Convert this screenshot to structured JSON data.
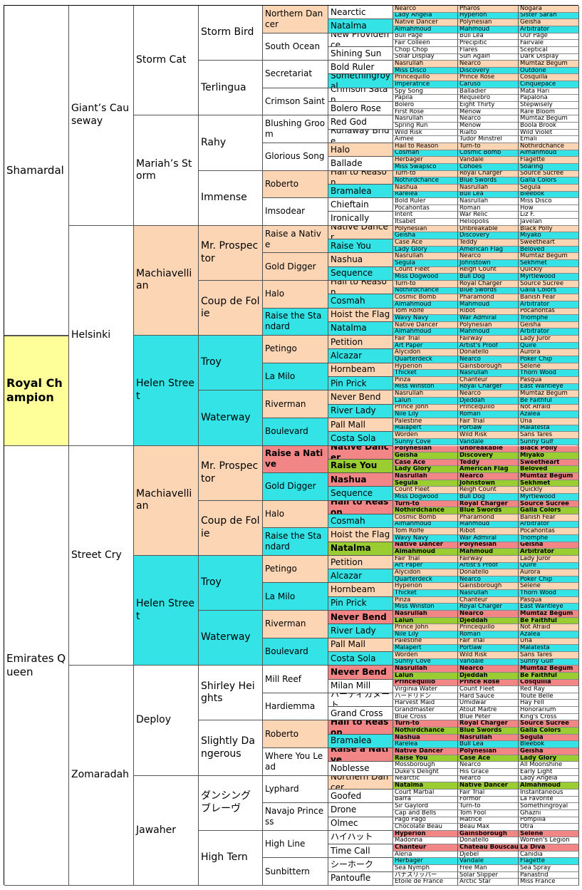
{
  "pedigree": {
    "subject": {
      "name": "Royal Champion",
      "fill": "#ffff99"
    },
    "sire": {
      "name": "Shamardal",
      "fill": "#ffffff"
    },
    "dam": {
      "name": "Emirates Queen",
      "fill": "#ffffff"
    },
    "gen2": {
      "names": [
        "Giant’s Causeway",
        "Helsinki",
        "Street Cry",
        "Zomaradah"
      ],
      "fills": [
        "#ffffff",
        "#ffffff",
        "#ffffff",
        "#ffffff"
      ]
    },
    "gen3": {
      "names": [
        "Storm Cat",
        "Mariah’s Storm",
        "Machiavellian",
        "Helen Street",
        "Machiavellian",
        "Helen Street",
        "Deploy",
        "Jawaher"
      ],
      "fills": [
        "#ffffff",
        "#ffffff",
        "#fcd5b4",
        "#33e3e6",
        "#fcd5b4",
        "#33e3e6",
        "#ffffff",
        "#ffffff"
      ]
    },
    "gen4": {
      "names": [
        "Storm Bird",
        "Terlingua",
        "Rahy",
        "Immense",
        "Mr. Prospector",
        "Coup de Folie",
        "Troy",
        "Waterway",
        "Mr. Prospector",
        "Coup de Folie",
        "Troy",
        "Waterway",
        "Shirley Heights",
        "Slightly Dangerous",
        "ダンシングブレーヴ",
        "High Tern"
      ],
      "fills": [
        "#ffffff",
        "#ffffff",
        "#ffffff",
        "#ffffff",
        "#fcd5b4",
        "#fcd5b4",
        "#33e3e6",
        "#33e3e6",
        "#fcd5b4",
        "#fcd5b4",
        "#33e3e6",
        "#33e3e6",
        "#ffffff",
        "#ffffff",
        "#ffffff",
        "#ffffff"
      ]
    },
    "gen5": {
      "names": [
        "Northern Dancer",
        "South Ocean",
        "Secretariat",
        "Crimson Saint",
        "Blushing Groom",
        "Glorious Song",
        "Roberto",
        "Imsodear",
        "Raise a Native",
        "Gold Digger",
        "Halo",
        "Raise the Standard",
        "Petingo",
        "La Milo",
        "Riverman",
        "Boulevard",
        "Raise a Native",
        "Gold Digger",
        "Halo",
        "Raise the Standard",
        "Petingo",
        "La Milo",
        "Riverman",
        "Boulevard",
        "Mill Reef",
        "Hardiemma",
        "Roberto",
        "Where You Lead",
        "Lyphard",
        "Navajo Princess",
        "High Line",
        "Sunbittern"
      ],
      "fills": [
        "#fcd5b4",
        "#ffffff",
        "#ffffff",
        "#ffffff",
        "#ffffff",
        "#ffffff",
        "#fcd5b4",
        "#ffffff",
        "#fcd5b4",
        "#fcd5b4",
        "#fcd5b4",
        "#33e3e6",
        "#fcd5b4",
        "#33e3e6",
        "#fcd5b4",
        "#33e3e6",
        "#f28585",
        "#33e3e6",
        "#fcd5b4",
        "#33e3e6",
        "#fcd5b4",
        "#33e3e6",
        "#fcd5b4",
        "#33e3e6",
        "#ffffff",
        "#ffffff",
        "#fcd5b4",
        "#ffffff",
        "#ffffff",
        "#ffffff",
        "#ffffff",
        "#ffffff"
      ]
    },
    "gen6": {
      "names": [
        "Nearctic",
        "Natalma",
        "New Providence",
        "Shining Sun",
        "Bold Ruler",
        "Somethingroyal",
        "Crimson Satan",
        "Bolero Rose",
        "Red God",
        "Runaway Bride",
        "Halo",
        "Ballade",
        "Hail to Reason",
        "Bramalea",
        "Chieftain",
        "Ironically",
        "Native Dancer",
        "Raise You",
        "Nashua",
        "Sequence",
        "Hail to Reason",
        "Cosmah",
        "Hoist the Flag",
        "Natalma",
        "Petition",
        "Alcazar",
        "Hornbeam",
        "Pin Prick",
        "Never Bend",
        "River Lady",
        "Pall Mall",
        "Costa Sola",
        "Native Dancer",
        "Raise You",
        "Nashua",
        "Sequence",
        "Hail to Reason",
        "Cosmah",
        "Hoist the Flag",
        "Natalma",
        "Petition",
        "Alcazar",
        "Hornbeam",
        "Pin Prick",
        "Never Bend",
        "River Lady",
        "Pall Mall",
        "Costa Sola",
        "Never Bend",
        "Milan Mill",
        "ハーディカヌート",
        "Grand Cross",
        "Hail to Reason",
        "Bramalea",
        "Raise a Native",
        "Noblesse",
        "Northern Dancer",
        "Goofed",
        "Drone",
        "Olmec",
        "ハイハット",
        "Time Call",
        "シーホーク",
        "Pantoufle"
      ],
      "fills": [
        "#ffffff",
        "#33e3e6",
        "#ffffff",
        "#ffffff",
        "#ffffff",
        "#33e3e6",
        "#ffffff",
        "#ffffff",
        "#ffffff",
        "#ffffff",
        "#fcd5b4",
        "#ffffff",
        "#fcd5b4",
        "#33e3e6",
        "#ffffff",
        "#ffffff",
        "#fcd5b4",
        "#33e3e6",
        "#fcd5b4",
        "#33e3e6",
        "#fcd5b4",
        "#33e3e6",
        "#fcd5b4",
        "#33e3e6",
        "#fcd5b4",
        "#33e3e6",
        "#fcd5b4",
        "#33e3e6",
        "#fcd5b4",
        "#33e3e6",
        "#fcd5b4",
        "#33e3e6",
        "#f28585",
        "#9acd32",
        "#f28585",
        "#33e3e6",
        "#f28585",
        "#33e3e6",
        "#fcd5b4",
        "#9acd32",
        "#fcd5b4",
        "#33e3e6",
        "#fcd5b4",
        "#33e3e6",
        "#f28585",
        "#33e3e6",
        "#fcd5b4",
        "#33e3e6",
        "#f28585",
        "#ffffff",
        "#ffffff",
        "#ffffff",
        "#f28585",
        "#33e3e6",
        "#f28585",
        "#ffffff",
        "#fcd5b4",
        "#ffffff",
        "#ffffff",
        "#ffffff",
        "#ffffff",
        "#ffffff",
        "#ffffff",
        "#ffffff"
      ]
    },
    "gen7": {
      "names": [
        "Nearco",
        "Lady Angela",
        "Native Dancer",
        "Almahmoud",
        "Bull Page",
        "Fair Colleen",
        "Chop Chop",
        "Solar Display",
        "Nasrullah",
        "Miss Disco",
        "Princequillo",
        "Imperatrice",
        "Spy Song",
        "Papila",
        "Bolero",
        "First Rose",
        "Nasrullah",
        "Spring Run",
        "Wild Risk",
        "Aimee",
        "Hail to Reason",
        "Cosmah",
        "Herbager",
        "Miss Swapsco",
        "Turn-to",
        "Nothirdchance",
        "Nashua",
        "Rarelea",
        "Bold Ruler",
        "Pocahontas",
        "Intent",
        "Itsabet",
        "Polynesian",
        "Geisha",
        "Case Ace",
        "Lady Glory",
        "Nasrullah",
        "Segula",
        "Count Fleet",
        "Miss Dogwood",
        "Turn-to",
        "Nothirdchance",
        "Cosmic Bomb",
        "Almahmoud",
        "Tom Rolfe",
        "Wavy Navy",
        "Native Dancer",
        "Almahmoud",
        "Fair Trial",
        "Art Paper",
        "Alycidon",
        "Quarterdeck",
        "Hyperion",
        "Thicket",
        "Pinza",
        "Miss Winston",
        "Nasrullah",
        "Lalun",
        "Prince John",
        "Nile Lily",
        "Palestine",
        "Malapert",
        "Worden",
        "Sunny Cove",
        "Polynesian",
        "Geisha",
        "Case Ace",
        "Lady Glory",
        "Nasrullah",
        "Segula",
        "Count Fleet",
        "Miss Dogwood",
        "Turn-to",
        "Nothirdchance",
        "Cosmic Bomb",
        "Almahmoud",
        "Tom Rolfe",
        "Wavy Navy",
        "Native Dancer",
        "Almahmoud",
        "Fair Trial",
        "Art Paper",
        "Alycidon",
        "Quarterdeck",
        "Hyperion",
        "Thicket",
        "Pinza",
        "Miss Winston",
        "Nasrullah",
        "Lalun",
        "Prince John",
        "Nile Lily",
        "Palestine",
        "Malapert",
        "Worden",
        "Sunny Cove",
        "Nasrullah",
        "Lalun",
        "Princequillo",
        "Virginia Water",
        "ハードリドン",
        "Harvest Maid",
        "Grandmaster",
        "Blue Cross",
        "Turn-to",
        "Nothirdchance",
        "Nashua",
        "Rarelea",
        "Native Dancer",
        "Raise You",
        "Mossborough",
        "Duke's Delight",
        "Nearctic",
        "Natalma",
        "Court Martial",
        "Barra",
        "Sir Gaylord",
        "Cap and Bells",
        "Pago Pago",
        "Chocolate Beau",
        "Hyperion",
        "Madonna",
        "Chanteur",
        "Aleria",
        "Herbager",
        "Sea Nymph",
        "パナスリッパー",
        "Etoile de France"
      ],
      "sires": [
        "Pharos",
        "Hyperion",
        "Polynesian",
        "Mahmoud",
        "Bull Lea",
        "Precipitic",
        "Flares",
        "Sun Again",
        "Nearco",
        "Discovery",
        "Prince Rose",
        "Caruso",
        "Balladier",
        "Requiebro",
        "Eight Thirty",
        "Menow",
        "Nearco",
        "Menow",
        "Rialto",
        "Tudor Minstrel",
        "Turn-to",
        "Cosmic Bomb",
        "Vandale",
        "Cohoes",
        "Royal Charger",
        "Blue Swords",
        "Nasrullah",
        "Bull Lea",
        "Nasrullah",
        "Roman",
        "War Relic",
        "Heliopolis",
        "Unbreakable",
        "Discovery",
        "Teddy",
        "American Flag",
        "Nearco",
        "Johnstown",
        "Reigh Count",
        "Bull Dog",
        "Royal Charger",
        "Blue Swords",
        "Pharamond",
        "Mahmoud",
        "Ribot",
        "War Admiral",
        "Polynesian",
        "Mahmoud",
        "Fairway",
        "Artist's Proof",
        "Donatello",
        "Nearco",
        "Gainsborough",
        "Nasrullah",
        "Chanteur",
        "Royal Charger",
        "Nearco",
        "Djeddah",
        "Princequillo",
        "Roman",
        "Fair Trial",
        "Portlaw",
        "Wild Risk",
        "Vandale",
        "Unbreakable",
        "Discovery",
        "Teddy",
        "American Flag",
        "Nearco",
        "Johnstown",
        "Reigh Count",
        "Bull Dog",
        "Royal Charger",
        "Blue Swords",
        "Pharamond",
        "Mahmoud",
        "Ribot",
        "War Admiral",
        "Polynesian",
        "Mahmoud",
        "Fairway",
        "Artist's Proof",
        "Donatello",
        "Nearco",
        "Gainsborough",
        "Nasrullah",
        "Chanteur",
        "Royal Charger",
        "Nearco",
        "Djeddah",
        "Princequillo",
        "Roman",
        "Fair Trial",
        "Portlaw",
        "Wild Risk",
        "Vandale",
        "Nearco",
        "Djeddah",
        "Prince Rose",
        "Count Fleet",
        "Hard Sauce",
        "Umidwar",
        "Atout Maitre",
        "Blue Peter",
        "Royal Charger",
        "Blue Swords",
        "Nasrullah",
        "Bull Lea",
        "Polynesian",
        "Case Ace",
        "Nearco",
        "His Grace",
        "Nearco",
        "Native Dancer",
        "Fair Trial",
        "Formor",
        "Turn-to",
        "Tom Fool",
        "Matrice",
        "Beau Max",
        "Gainsborough",
        "Donatello",
        "Chateau Bouscaut",
        "Djebel",
        "Vandale",
        "Free Man",
        "Solar Slipper",
        "Arctic Star"
      ],
      "dams": [
        "Nogara",
        "Sister Sarah",
        "Geisha",
        "Arbitrator",
        "Our Page",
        "Fairvale",
        "Sceptical",
        "Dark Display",
        "Mumtaz Begum",
        "Outdone",
        "Cosquilla",
        "Cinquepace",
        "Mata Hari",
        "Papalona",
        "Stepwisely",
        "Rare Bloom",
        "Mumtaz Begum",
        "Boola Brook",
        "Wild Violet",
        "Emali",
        "Nothirdchance",
        "Almahmoud",
        "Flagette",
        "Soaring",
        "Source Sucree",
        "Galla Colors",
        "Segula",
        "Bleebok",
        "Miss Disco",
        "How",
        "Liz F.",
        "Javelan",
        "Black Polly",
        "Miyako",
        "Sweetheart",
        "Beloved",
        "Mumtaz Begum",
        "Sekhmet",
        "Quickly",
        "Myrtlewood",
        "Source Sucree",
        "Galla Colors",
        "Banish Fear",
        "Arbitrator",
        "Pocahontas",
        "Triomphe",
        "Geisha",
        "Arbitrator",
        "Lady Juror",
        "Quire",
        "Aurora",
        "Poker Chip",
        "Selene",
        "Thorn Wood",
        "Pasqua",
        "East Wantleye",
        "Mumtaz Begum",
        "Be Faithful",
        "Not Afraid",
        "Azalea",
        "Una",
        "Malatesta",
        "Sans Tares",
        "Sunny Gulf",
        "Black Polly",
        "Miyako",
        "Sweetheart",
        "Beloved",
        "Mumtaz Begum",
        "Sekhmet",
        "Quickly",
        "Myrtlewood",
        "Source Sucree",
        "Galla Colors",
        "Banish Fear",
        "Arbitrator",
        "Pocahontas",
        "Triomphe",
        "Geisha",
        "Arbitrator",
        "Lady Juror",
        "Quire",
        "Aurora",
        "Poker Chip",
        "Selene",
        "Thorn Wood",
        "Pasqua",
        "East Wantleye",
        "Mumtaz Begum",
        "Be Faithful",
        "Not Afraid",
        "Azalea",
        "Una",
        "Malatesta",
        "Sans Tares",
        "Sunny Gulf",
        "Mumtaz Begum",
        "Be Faithful",
        "Cosquilla",
        "Red Ray",
        "Toute Belle",
        "Hay Fell",
        "Honorarium",
        "King's Cross",
        "Source Sucree",
        "Galla Colors",
        "Segula",
        "Bleebok",
        "Geisha",
        "Lady Glory",
        "All Moonshine",
        "Early Light",
        "Lady Angela",
        "Almahmoud",
        "Instantaneous",
        "La Favorite",
        "Somethingroyal",
        "Ghazni",
        "Pompilia",
        "Otra",
        "Selene",
        "Women's Legion",
        "La Diva",
        "Canidia",
        "Flagette",
        "Sea Spray",
        "Panastrid",
        "Miss France"
      ],
      "fills": [
        "#fcd5b4",
        "#33e3e6",
        "#fcd5b4",
        "#33e3e6",
        "#ffffff",
        "#ffffff",
        "#ffffff",
        "#ffffff",
        "#fcd5b4",
        "#33e3e6",
        "#fcd5b4",
        "#33e3e6",
        "#ffffff",
        "#ffffff",
        "#ffffff",
        "#ffffff",
        "#ffffff",
        "#ffffff",
        "#ffffff",
        "#ffffff",
        "#fcd5b4",
        "#33e3e6",
        "#fcd5b4",
        "#33e3e6",
        "#fcd5b4",
        "#33e3e6",
        "#fcd5b4",
        "#33e3e6",
        "#ffffff",
        "#ffffff",
        "#ffffff",
        "#ffffff",
        "#fcd5b4",
        "#33e3e6",
        "#fcd5b4",
        "#33e3e6",
        "#fcd5b4",
        "#33e3e6",
        "#fcd5b4",
        "#33e3e6",
        "#fcd5b4",
        "#33e3e6",
        "#fcd5b4",
        "#33e3e6",
        "#fcd5b4",
        "#33e3e6",
        "#fcd5b4",
        "#33e3e6",
        "#fcd5b4",
        "#33e3e6",
        "#fcd5b4",
        "#33e3e6",
        "#fcd5b4",
        "#33e3e6",
        "#fcd5b4",
        "#33e3e6",
        "#fcd5b4",
        "#33e3e6",
        "#fcd5b4",
        "#33e3e6",
        "#fcd5b4",
        "#33e3e6",
        "#fcd5b4",
        "#33e3e6",
        "#f28585",
        "#9acd32",
        "#f28585",
        "#9acd32",
        "#f28585",
        "#9acd32",
        "#fcd5b4",
        "#33e3e6",
        "#f28585",
        "#9acd32",
        "#fcd5b4",
        "#33e3e6",
        "#fcd5b4",
        "#33e3e6",
        "#f28585",
        "#9acd32",
        "#fcd5b4",
        "#33e3e6",
        "#fcd5b4",
        "#33e3e6",
        "#fcd5b4",
        "#33e3e6",
        "#fcd5b4",
        "#33e3e6",
        "#f28585",
        "#9acd32",
        "#fcd5b4",
        "#33e3e6",
        "#fcd5b4",
        "#33e3e6",
        "#fcd5b4",
        "#33e3e6",
        "#f28585",
        "#9acd32",
        "#f28585",
        "#ffffff",
        "#ffffff",
        "#ffffff",
        "#ffffff",
        "#ffffff",
        "#f28585",
        "#9acd32",
        "#f28585",
        "#33e3e6",
        "#f28585",
        "#9acd32",
        "#ffffff",
        "#ffffff",
        "#ffffff",
        "#9acd32",
        "#ffffff",
        "#ffffff",
        "#ffffff",
        "#ffffff",
        "#ffffff",
        "#ffffff",
        "#f28585",
        "#ffffff",
        "#f28585",
        "#ffffff",
        "#33e3e6",
        "#ffffff",
        "#ffffff",
        "#ffffff"
      ]
    },
    "bold_fills": [
      "#f28585",
      "#9acd32",
      "#ffff99"
    ]
  }
}
